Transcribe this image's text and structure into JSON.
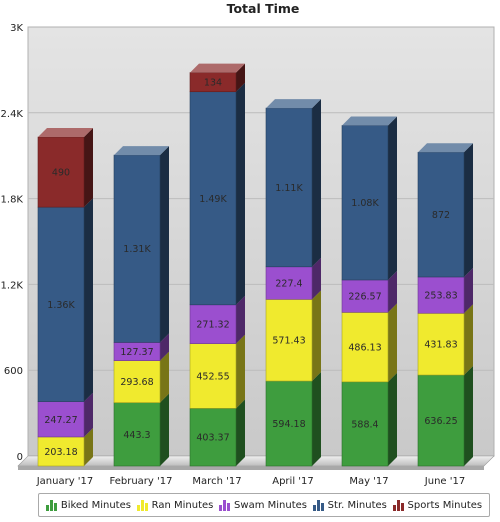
{
  "chart_data": {
    "type": "bar",
    "stacked": true,
    "style": "3d",
    "title": "Total Time",
    "xlabel": "",
    "ylabel": "",
    "ylim": [
      0,
      3000
    ],
    "yticks": [
      "0",
      "600",
      "1.2K",
      "1.8K",
      "2.4K",
      "3K"
    ],
    "grid": true,
    "legend_position": "bottom",
    "categories": [
      "January '17",
      "February '17",
      "March '17",
      "April '17",
      "May '17",
      "June '17"
    ],
    "series": [
      {
        "name": "Biked Minutes",
        "color": "#3e9d3e",
        "values": [
          0,
          443.3,
          403.37,
          594.18,
          588.4,
          636.25
        ],
        "labels": [
          "",
          "443.3",
          "403.37",
          "594.18",
          "588.4",
          "636.25"
        ]
      },
      {
        "name": "Ran Minutes",
        "color": "#f0ea2e",
        "values": [
          203.18,
          293.68,
          452.55,
          571.43,
          486.13,
          431.83
        ],
        "labels": [
          "203.18",
          "293.68",
          "452.55",
          "571.43",
          "486.13",
          "431.83"
        ]
      },
      {
        "name": "Swam Minutes",
        "color": "#9b4fcf",
        "values": [
          247.27,
          127.37,
          271.32,
          227.4,
          226.57,
          253.83
        ],
        "labels": [
          "247.27",
          "127.37",
          "271.32",
          "227.4",
          "226.57",
          "253.83"
        ]
      },
      {
        "name": "Str. Minutes",
        "color": "#365a86",
        "values": [
          1360,
          1310,
          1490,
          1110,
          1080,
          872
        ],
        "labels": [
          "1.36K",
          "1.31K",
          "1.49K",
          "1.11K",
          "1.08K",
          "872"
        ]
      },
      {
        "name": "Sports Minutes",
        "color": "#8a2a2a",
        "values": [
          490,
          0,
          134,
          0,
          0,
          0
        ],
        "labels": [
          "490",
          "",
          "134",
          "",
          "",
          ""
        ]
      }
    ]
  }
}
